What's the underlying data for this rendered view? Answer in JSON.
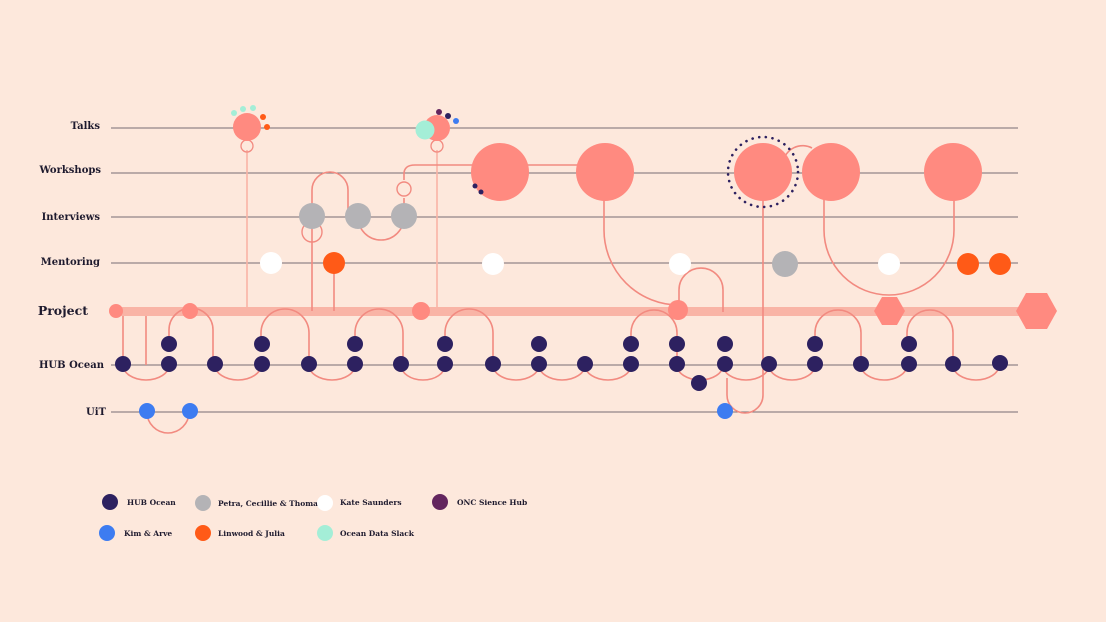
{
  "colors": {
    "background": "#fde8dc",
    "lane_line": "#4a4450",
    "project_bar": "#f9b4a6",
    "connector": "#f28a80",
    "salmon": "#ff8a80",
    "hub_ocean": "#2d2160",
    "petra_cecillie_thomas": "#b4b3b6",
    "kate_saunders": "#ffffff",
    "onc_sience_hub": "#63255e",
    "kim_arve": "#3d7cf1",
    "linwood_julia": "#ff5a17",
    "ocean_data_slack": "#a4eed7"
  },
  "lanes": {
    "talks": "Talks",
    "workshops": "Workshops",
    "interviews": "Interviews",
    "mentoring": "Mentoring",
    "project": "Project",
    "hub_ocean": "HUB Ocean",
    "uit": "UiT"
  },
  "legend": [
    {
      "label": "HUB Ocean",
      "color": "#2d2160"
    },
    {
      "label": "Petra, Cecillie & Thomas",
      "color": "#b4b3b6"
    },
    {
      "label": "Kate Saunders",
      "color": "#ffffff"
    },
    {
      "label": "ONC Sience Hub",
      "color": "#63255e"
    },
    {
      "label": "Kim & Arve",
      "color": "#3d7cf1"
    },
    {
      "label": "Linwood & Julia",
      "color": "#ff5a17"
    },
    {
      "label": "Ocean Data Slack",
      "color": "#a4eed7"
    }
  ]
}
